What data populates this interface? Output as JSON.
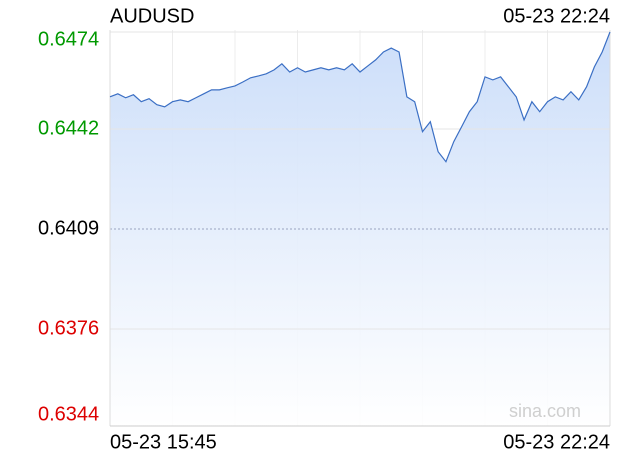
{
  "chart_data": {
    "type": "line",
    "title": "AUDUSD",
    "timestamp": "05-23 22:24",
    "watermark": "sina.com",
    "categories": [
      "05-23 15:45",
      null,
      null,
      null,
      null,
      null,
      null,
      null,
      null,
      null,
      null,
      null,
      null,
      null,
      null,
      null,
      null,
      null,
      null,
      null,
      null,
      null,
      null,
      null,
      null,
      null,
      null,
      null,
      null,
      null,
      null,
      null,
      null,
      null,
      null,
      null,
      null,
      null,
      null,
      null,
      null,
      null,
      null,
      null,
      null,
      null,
      null,
      null,
      null,
      null,
      null,
      null,
      null,
      null,
      null,
      null,
      null,
      null,
      null,
      null,
      null,
      null,
      null,
      null,
      "05-23 22:24"
    ],
    "series": [
      {
        "name": "AUDUSD",
        "color": "#3b6fc4",
        "values": [
          0.64526,
          0.64536,
          0.64523,
          0.64533,
          0.6451,
          0.6452,
          0.645,
          0.64493,
          0.6451,
          0.64516,
          0.6451,
          0.64523,
          0.64536,
          0.64549,
          0.64549,
          0.64556,
          0.64562,
          0.64575,
          0.64589,
          0.64595,
          0.64602,
          0.64615,
          0.64635,
          0.64608,
          0.64622,
          0.64608,
          0.64615,
          0.64622,
          0.64615,
          0.64622,
          0.64615,
          0.64635,
          0.64608,
          0.64628,
          0.64648,
          0.64674,
          0.64687,
          0.64674,
          0.64526,
          0.6451,
          0.64411,
          0.64444,
          0.64345,
          0.64312,
          0.64378,
          0.64427,
          0.64477,
          0.6451,
          0.64592,
          0.64582,
          0.64592,
          0.64559,
          0.64526,
          0.6445,
          0.6451,
          0.64477,
          0.6451,
          0.64526,
          0.64516,
          0.64543,
          0.64516,
          0.64559,
          0.64625,
          0.64674,
          0.6474
        ]
      }
    ],
    "ylim": [
      0.6344,
      0.6474
    ],
    "yticks": [
      0.6474,
      0.6442,
      0.6409,
      0.6376,
      0.6344
    ],
    "ytick_colors": [
      "#009900",
      "#009900",
      "#000000",
      "#dd0000",
      "#dd0000"
    ],
    "area_fill": "#cfe0fa",
    "grid": true
  }
}
